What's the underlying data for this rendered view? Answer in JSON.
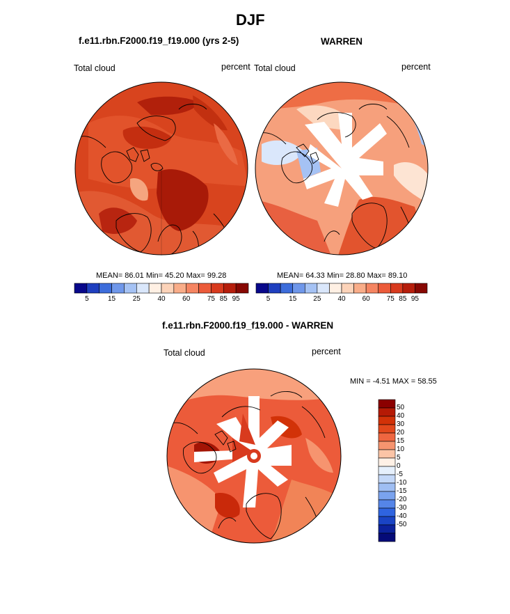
{
  "figure": {
    "title": "DJF",
    "panel_left": {
      "case": "f.e11.rbn.F2000.f19_f19.000 (yrs 2-5)",
      "variable": "Total cloud",
      "units": "percent",
      "stats": "MEAN=  86.01  Min=  45.20  Max=  99.28"
    },
    "panel_right": {
      "case": "WARREN",
      "variable": "Total cloud",
      "units": "percent",
      "stats": "MEAN=  64.33  Min=  28.80  Max=  89.10"
    },
    "panel_diff": {
      "case": "f.e11.rbn.F2000.f19_f19.000 - WARREN",
      "variable": "Total cloud",
      "units": "percent",
      "stats": "MIN =  -4.51 MAX =  58.55"
    }
  },
  "colorbar_abs": {
    "colors": [
      "#08088a",
      "#1f3fbf",
      "#3d6ddb",
      "#6f97ea",
      "#a5c2f4",
      "#dae7fb",
      "#fff0e4",
      "#fcd3b9",
      "#f9ad89",
      "#f58562",
      "#ec5b3a",
      "#d83a1e",
      "#b61e0c",
      "#870803"
    ],
    "labels": [
      "5",
      "15",
      "25",
      "40",
      "60",
      "75",
      "85",
      "95"
    ]
  },
  "colorbar_diff": {
    "colors": [
      "#8b0000",
      "#b51a05",
      "#d23208",
      "#e2481c",
      "#ef6640",
      "#f6946f",
      "#fbc4a6",
      "#fff1e6",
      "#e6f0fc",
      "#c4d8f8",
      "#9fbef3",
      "#7aa3ee",
      "#5585e8",
      "#2f64e0",
      "#1a44c4",
      "#0c229c",
      "#050b78"
    ],
    "labels": [
      "50",
      "40",
      "30",
      "20",
      "15",
      "10",
      "5",
      "0",
      "-5",
      "-10",
      "-15",
      "-20",
      "-30",
      "-40",
      "-50"
    ]
  },
  "chart_data": [
    {
      "type": "heatmap",
      "title": "f.e11.rbn.F2000.f19_f19.000 (yrs 2-5)",
      "variable": "Total cloud",
      "units": "percent",
      "projection": "north polar stereographic",
      "mean": 86.01,
      "min": 45.2,
      "max": 99.28,
      "levels": [
        5,
        10,
        15,
        20,
        25,
        30,
        40,
        50,
        60,
        70,
        75,
        80,
        85,
        90,
        95
      ]
    },
    {
      "type": "heatmap",
      "title": "WARREN",
      "variable": "Total cloud",
      "units": "percent",
      "projection": "north polar stereographic",
      "mean": 64.33,
      "min": 28.8,
      "max": 89.1,
      "levels": [
        5,
        10,
        15,
        20,
        25,
        30,
        40,
        50,
        60,
        70,
        75,
        80,
        85,
        90,
        95
      ]
    },
    {
      "type": "heatmap",
      "title": "f.e11.rbn.F2000.f19_f19.000 - WARREN",
      "variable": "Total cloud",
      "units": "percent",
      "projection": "north polar stereographic",
      "min": -4.51,
      "max": 58.55,
      "levels": [
        -50,
        -40,
        -30,
        -20,
        -15,
        -10,
        -5,
        0,
        5,
        10,
        15,
        20,
        30,
        40,
        50
      ]
    }
  ]
}
